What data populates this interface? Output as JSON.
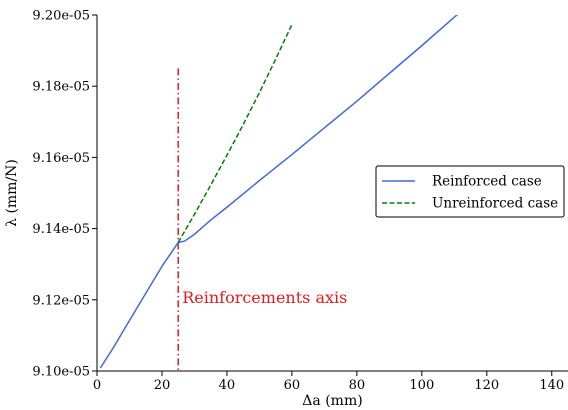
{
  "chart_data": {
    "type": "line",
    "xlabel": "Δa (mm)",
    "ylabel": "λ (mm/N)",
    "xlim": [
      0,
      145
    ],
    "ylim": [
      9.1e-05,
      9.2e-05
    ],
    "x_ticks": [
      0,
      20,
      40,
      60,
      80,
      100,
      120,
      140
    ],
    "x_tick_labels": [
      "0",
      "20",
      "40",
      "60",
      "80",
      "100",
      "120",
      "140"
    ],
    "y_ticks": [
      9.1e-05,
      9.12e-05,
      9.14e-05,
      9.16e-05,
      9.18e-05,
      9.2e-05
    ],
    "y_tick_labels": [
      "9.10e-05",
      "9.12e-05",
      "9.14e-05",
      "9.16e-05",
      "9.18e-05",
      "9.20e-05"
    ],
    "grid": false,
    "legend_position": "right",
    "series": [
      {
        "name": "Reinforced case",
        "color": "#4169e1",
        "style": "solid",
        "x": [
          1,
          5,
          10,
          15,
          20,
          25,
          27,
          30,
          35,
          40,
          50,
          60,
          70,
          80,
          90,
          100,
          110,
          115
        ],
        "y": [
          9.1008e-05,
          9.1065e-05,
          9.1142e-05,
          9.1218e-05,
          9.1294e-05,
          9.1361e-05,
          9.1365e-05,
          9.1384e-05,
          9.1424e-05,
          9.146e-05,
          9.1535e-05,
          9.1608e-05,
          9.1683e-05,
          9.1758e-05,
          9.1836e-05,
          9.1914e-05,
          9.1994e-05,
          9.2032e-05
        ]
      },
      {
        "name": "Unreinforced case",
        "color": "#008000",
        "style": "dashed",
        "x": [
          25,
          30,
          35,
          40,
          45,
          50,
          55,
          60
        ],
        "y": [
          9.1361e-05,
          9.144e-05,
          9.1522e-05,
          9.1606e-05,
          9.1692e-05,
          9.1782e-05,
          9.1876e-05,
          9.1973e-05
        ]
      }
    ],
    "vertical_line": {
      "x": 25,
      "y_end": 9.185e-05,
      "color": "#e41a1c",
      "style": "dashdot",
      "label": "Reinforcements axis"
    }
  }
}
